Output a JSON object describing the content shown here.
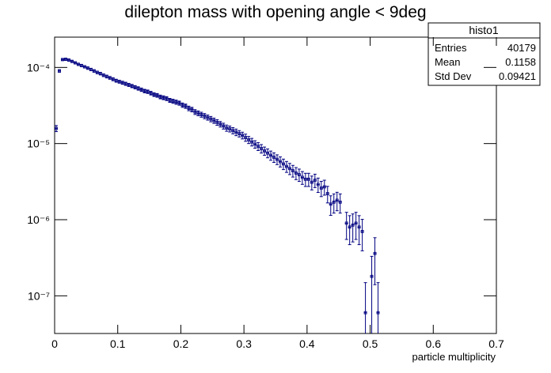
{
  "chart_data": {
    "type": "histogram",
    "title": "dilepton mass with opening angle < 9deg",
    "x_label": "particle multiplicity",
    "log_y": true,
    "color": "#000080",
    "xlim": [
      0,
      0.7
    ],
    "xticks": [
      0,
      0.1,
      0.2,
      0.3,
      0.4,
      0.5,
      0.6,
      0.7
    ],
    "ylim": [
      3.2e-08,
      0.00025
    ],
    "yticks": [
      {
        "value": 1e-07,
        "label": "10⁻⁷"
      },
      {
        "value": 1e-06,
        "label": "10⁻⁶"
      },
      {
        "value": 1e-05,
        "label": "10⁻⁵"
      },
      {
        "value": 0.0001,
        "label": "10⁻⁴"
      }
    ],
    "bins": [
      0,
      0.005,
      0.01,
      0.015,
      0.02,
      0.025,
      0.03,
      0.035,
      0.04,
      0.045,
      0.05,
      0.055,
      0.06,
      0.065,
      0.07,
      0.075,
      0.08,
      0.085,
      0.09,
      0.095,
      0.1,
      0.105,
      0.11,
      0.115,
      0.12,
      0.125,
      0.13,
      0.135,
      0.14,
      0.145,
      0.15,
      0.155,
      0.16,
      0.165,
      0.17,
      0.175,
      0.18,
      0.185,
      0.19,
      0.195,
      0.2,
      0.205,
      0.21,
      0.215,
      0.22,
      0.225,
      0.23,
      0.235,
      0.24,
      0.245,
      0.25,
      0.255,
      0.26,
      0.265,
      0.27,
      0.275,
      0.28,
      0.285,
      0.29,
      0.295,
      0.3,
      0.305,
      0.31,
      0.315,
      0.32,
      0.325,
      0.33,
      0.335,
      0.34,
      0.345,
      0.35,
      0.355,
      0.36,
      0.365,
      0.37,
      0.375,
      0.38,
      0.385,
      0.39,
      0.395,
      0.4,
      0.405,
      0.41,
      0.415,
      0.42,
      0.425,
      0.43,
      0.435,
      0.44,
      0.445,
      0.45,
      0.455,
      0.46,
      0.465,
      0.47,
      0.475,
      0.48,
      0.485,
      0.49,
      0.495,
      0.5,
      0.505,
      0.51,
      0.515,
      0.52
    ],
    "values": [
      1.58e-05,
      9e-05,
      0.000127,
      0.000128,
      0.000125,
      0.00012,
      0.000115,
      0.00011,
      0.000106,
      0.000102,
      9.8e-05,
      9.4e-05,
      9e-05,
      8.6e-05,
      8.3e-05,
      7.9e-05,
      7.6e-05,
      7.3e-05,
      7e-05,
      6.7e-05,
      6.5e-05,
      6.3e-05,
      6.1e-05,
      5.9e-05,
      5.7e-05,
      5.5e-05,
      5.3e-05,
      5.1e-05,
      4.9e-05,
      4.8e-05,
      4.6e-05,
      4.4e-05,
      4.3e-05,
      4.1e-05,
      4e-05,
      3.9e-05,
      3.7e-05,
      3.6e-05,
      3.5e-05,
      3.4e-05,
      3.2e-05,
      3.1e-05,
      2.9e-05,
      2.8e-05,
      2.6e-05,
      2.5e-05,
      2.4e-05,
      2.3e-05,
      2.2e-05,
      2.1e-05,
      2e-05,
      1.9e-05,
      1.8e-05,
      1.7e-05,
      1.6e-05,
      1.56e-05,
      1.48e-05,
      1.41e-05,
      1.35e-05,
      1.28e-05,
      1.2e-05,
      1.12e-05,
      1.05e-05,
      9.8e-06,
      9.2e-06,
      8.6e-06,
      8e-06,
      7.5e-06,
      7e-06,
      6.6e-06,
      6.2e-06,
      5.8e-06,
      5.4e-06,
      5e-06,
      4.7e-06,
      4.4e-06,
      4.1e-06,
      3.9e-06,
      3.6e-06,
      3.4e-06,
      3.4e-06,
      3.1e-06,
      3.3e-06,
      2.9e-06,
      2.6e-06,
      2.7e-06,
      2.2e-06,
      1.6e-06,
      1.7e-06,
      1.8e-06,
      1.7e-06,
      null,
      9e-07,
      8e-07,
      8.5e-07,
      9e-07,
      8e-07,
      7e-07,
      6e-08,
      null,
      1.8e-07,
      3.6e-07,
      6e-08,
      null
    ],
    "errors": [
      1.45e-06,
      3.5e-06,
      4.1e-06,
      4.1e-06,
      4.1e-06,
      4e-06,
      3.9e-06,
      3.8e-06,
      3.8e-06,
      3.7e-06,
      3.6e-06,
      3.5e-06,
      3.5e-06,
      3.4e-06,
      3.3e-06,
      3.2e-06,
      3.2e-06,
      3.1e-06,
      3.1e-06,
      3e-06,
      2.9e-06,
      2.9e-06,
      2.9e-06,
      2.8e-06,
      2.8e-06,
      2.7e-06,
      2.7e-06,
      2.6e-06,
      2.6e-06,
      2.5e-06,
      2.5e-06,
      2.4e-06,
      2.4e-06,
      2.3e-06,
      2.3e-06,
      2.3e-06,
      2.2e-06,
      2.2e-06,
      2.2e-06,
      2.1e-06,
      2.1e-06,
      2e-06,
      2e-06,
      1.9e-06,
      1.9e-06,
      1.8e-06,
      1.8e-06,
      1.8e-06,
      1.7e-06,
      1.7e-06,
      1.6e-06,
      1.6e-06,
      1.5e-06,
      1.5e-06,
      1.5e-06,
      1.4e-06,
      1.4e-06,
      1.4e-06,
      1.3e-06,
      1.3e-06,
      1.3e-06,
      1.2e-06,
      1.2e-06,
      1.1e-06,
      1.1e-06,
      1.1e-06,
      1e-06,
      1e-06,
      9.7e-07,
      9.4e-07,
      9.1e-07,
      8.8e-07,
      8.5e-07,
      8.2e-07,
      7.9e-07,
      7.7e-07,
      7.4e-07,
      7.2e-07,
      6.9e-07,
      6.7e-07,
      6.7e-07,
      6.4e-07,
      6.6e-07,
      6.2e-07,
      5.9e-07,
      6e-07,
      5.4e-07,
      4.6e-07,
      4.8e-07,
      4.9e-07,
      4.8e-07,
      null,
      3.5e-07,
      3.3e-07,
      3.4e-07,
      3.5e-07,
      3.3e-07,
      3.1e-07,
      8.9e-08,
      null,
      1.5e-07,
      2.2e-07,
      8.9e-08,
      null
    ],
    "stats": {
      "title": "histo1",
      "rows": [
        [
          "Entries",
          "40179"
        ],
        [
          "Mean",
          "0.1158"
        ],
        [
          "Std Dev",
          "0.09421"
        ]
      ]
    }
  }
}
